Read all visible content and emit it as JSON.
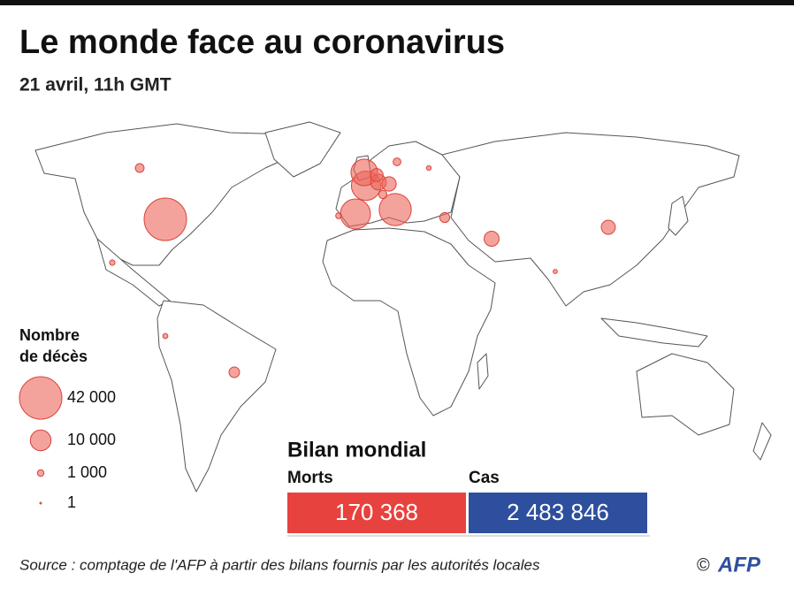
{
  "title": "Le monde face au coronavirus",
  "subtitle": "21 avril, 11h GMT",
  "legend": {
    "title": [
      "Nombre",
      "de décès"
    ],
    "entries": [
      {
        "value": 42000,
        "label": "42 000"
      },
      {
        "value": 10000,
        "label": "10 000"
      },
      {
        "value": 1000,
        "label": "1 000"
      },
      {
        "value": 1,
        "label": "1"
      }
    ]
  },
  "bubbles": [
    42000,
    24000,
    21000,
    20000,
    16500,
    5800,
    4800,
    3900,
    5200,
    4600,
    2300,
    2600,
    1800,
    1400,
    1600,
    700,
    600,
    800,
    400,
    500
  ],
  "summary": {
    "title": "Bilan mondial",
    "items": [
      {
        "name": "Morts",
        "value": "170 368",
        "color": "#e8423f"
      },
      {
        "name": "Cas",
        "value": "2 483 846",
        "color": "#2e4f9e"
      }
    ]
  },
  "source": "Source : comptage de l'AFP à partir des bilans fournis par les autorités locales",
  "credit": {
    "symbol": "©",
    "logo": "AFP"
  }
}
